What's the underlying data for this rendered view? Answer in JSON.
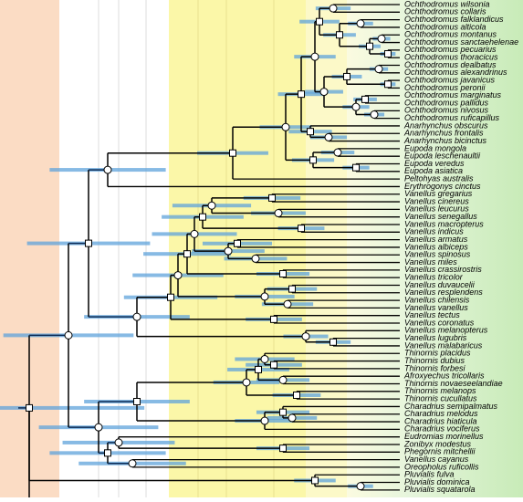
{
  "taxa": [
    "Ochthodromus wilsonia",
    "Ochthodromus collaris",
    "Ochthodromus falklandicus",
    "Ochthodromus alticola",
    "Ochthodromus montanus",
    "Ochthodromus sanctaehelenae",
    "Ochthodromus pecuarius",
    "Ochthodromus thoracicus",
    "Ochthodromus dealbatus",
    "Ochthodromus alexandrinus",
    "Ochthodromus javanicus",
    "Ochthodromus peronii",
    "Ochthodromus marginatus",
    "Ochthodromus pallidus",
    "Ochthodromus nivosus",
    "Ochthodromus ruficapillus",
    "Anarhynchus obscurus",
    "Anarhynchus frontalis",
    "Anarhynchus bicinctus",
    "Eupoda mongola",
    "Eupoda leschenaultii",
    "Eupoda veredus",
    "Eupoda asiatica",
    "Peltohyas australis",
    "Erythrogonys cinctus",
    "Vanellus gregarius",
    "Vanellus cinereus",
    "Vanellus leucurus",
    "Vanellus senegallus",
    "Vanellus macropterus",
    "Vanellus indicus",
    "Vanellus armatus",
    "Vanellus albiceps",
    "Vanellus spinosus",
    "Vanellus miles",
    "Vanellus crassirostris",
    "Vanellus tricolor",
    "Vanellus duvaucelii",
    "Vanellus resplendens",
    "Vanellus chilensis",
    "Vanellus vanellus",
    "Vanellus tectus",
    "Vanellus coronatus",
    "Vanellus melanopterus",
    "Vanellus lugubris",
    "Vanellus malabaricus",
    "Thinornis placidus",
    "Thinornis dubius",
    "Thinornis forbesi",
    "Afroxyechus tricollaris",
    "Thinornis novaeseelandiae",
    "Thinornis melanops",
    "Thinornis cucullatus",
    "Charadrius semipalmatus",
    "Charadrius melodus",
    "Charadrius hiaticula",
    "Charadrius vociferus",
    "Eudromias morinellus",
    "Zonibyx modestus",
    "Phegornis mitchellii",
    "Vanellus cayanus",
    "Oreopholus ruficollis",
    "Pluvialis fulva",
    "Pluvialis dominica",
    "Pluvialis squatarola"
  ]
}
